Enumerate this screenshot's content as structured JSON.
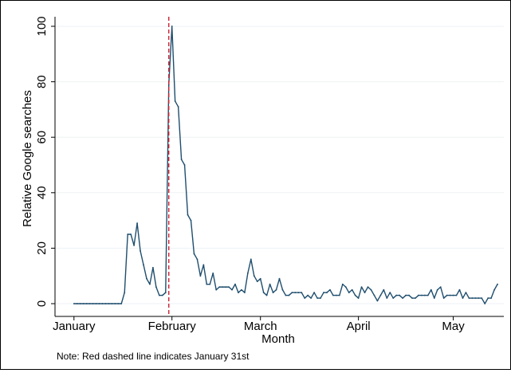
{
  "chart_data": {
    "type": "line",
    "title": "",
    "xlabel": "Month",
    "ylabel": "Relative Google searches",
    "note": "Note: Red dashed line indicates January 31st",
    "x_ticks": [
      {
        "label": "January",
        "day": 1
      },
      {
        "label": "February",
        "day": 32
      },
      {
        "label": "March",
        "day": 60
      },
      {
        "label": "April",
        "day": 91
      },
      {
        "label": "May",
        "day": 121
      }
    ],
    "y_ticks": [
      0,
      20,
      40,
      60,
      80,
      100
    ],
    "ylim": [
      0,
      100
    ],
    "xlim_day": [
      -5,
      137
    ],
    "vline": {
      "day": 31,
      "color": "#cc2233",
      "style": "dashed",
      "label": "January 31st"
    },
    "colors": {
      "series": "#1f4e6e",
      "vline": "#cc2233",
      "grid": "#eef2f4"
    },
    "series": [
      {
        "x_day": [
          1,
          2,
          3,
          4,
          5,
          6,
          7,
          8,
          9,
          10,
          11,
          12,
          13,
          14,
          15,
          16,
          17,
          18,
          19,
          20,
          21,
          22,
          23,
          24,
          25,
          26,
          27,
          28,
          29,
          30,
          31,
          32,
          33,
          34,
          35,
          36,
          37,
          38,
          39,
          40,
          41,
          42,
          43,
          44,
          45,
          46,
          47,
          48,
          49,
          50,
          51,
          52,
          53,
          54,
          55,
          56,
          57,
          58,
          59,
          60,
          61,
          62,
          63,
          64,
          65,
          66,
          67,
          68,
          69,
          70,
          71,
          72,
          73,
          74,
          75,
          76,
          77,
          78,
          79,
          80,
          81,
          82,
          83,
          84,
          85,
          86,
          87,
          88,
          89,
          90,
          91,
          92,
          93,
          94,
          95,
          96,
          97,
          98,
          99,
          100,
          101,
          102,
          103,
          104,
          105,
          106,
          107,
          108,
          109,
          110,
          111,
          112,
          113,
          114,
          115,
          116,
          117,
          118,
          119,
          120,
          121,
          122,
          123,
          124,
          125,
          126,
          127,
          128,
          129,
          130,
          131,
          132,
          133,
          134,
          135
        ],
        "values": [
          0,
          0,
          0,
          0,
          0,
          0,
          0,
          0,
          0,
          0,
          0,
          0,
          0,
          0,
          0,
          0,
          4,
          25,
          25,
          21,
          29,
          19,
          14,
          9,
          7,
          13,
          6,
          3,
          3,
          4,
          79,
          100,
          73,
          71,
          52,
          50,
          32,
          30,
          18,
          16,
          10,
          14,
          7,
          7,
          11,
          5,
          6,
          6,
          6,
          6,
          5,
          7,
          4,
          5,
          4,
          11,
          16,
          10,
          8,
          9,
          4,
          3,
          7,
          4,
          5,
          9,
          5,
          3,
          3,
          4,
          4,
          4,
          4,
          2,
          3,
          2,
          4,
          2,
          2,
          4,
          4,
          5,
          3,
          3,
          3,
          7,
          6,
          4,
          5,
          3,
          2,
          6,
          4,
          6,
          5,
          3,
          1,
          3,
          5,
          2,
          4,
          2,
          3,
          3,
          2,
          3,
          3,
          2,
          2,
          3,
          3,
          3,
          3,
          5,
          2,
          5,
          6,
          2,
          3,
          3,
          3,
          3,
          5,
          2,
          4,
          2,
          2,
          2,
          2,
          2,
          0,
          2,
          2,
          5,
          7
        ]
      }
    ]
  }
}
